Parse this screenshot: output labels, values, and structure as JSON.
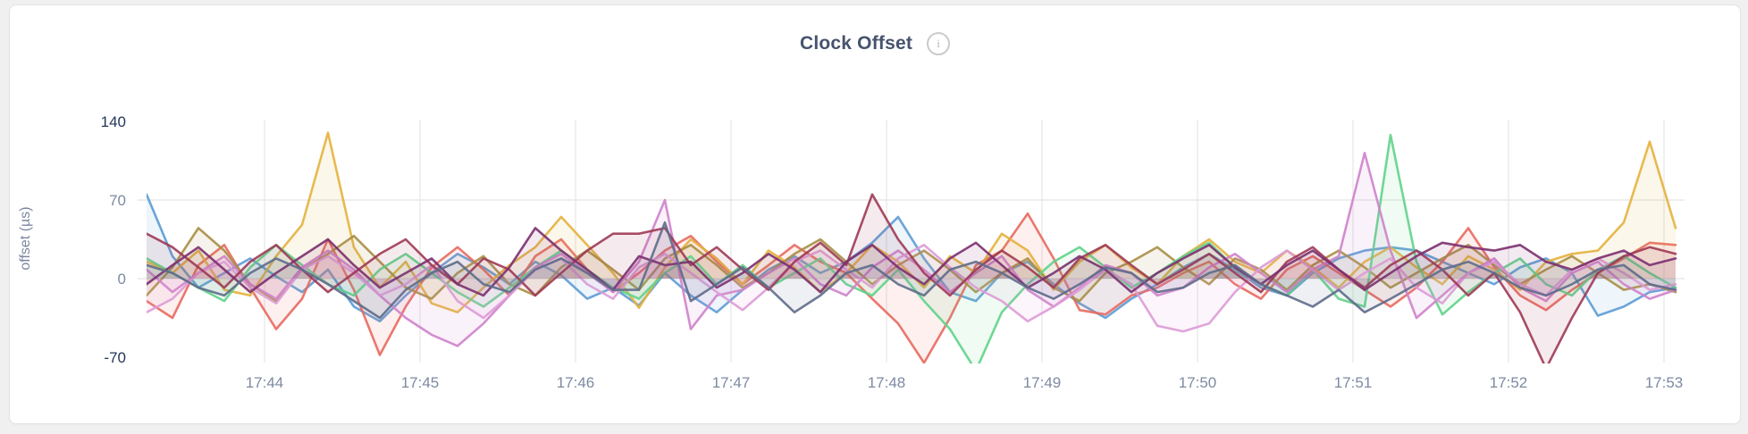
{
  "card": {
    "title": "Clock Offset",
    "info_icon": "i"
  },
  "chart_data": {
    "type": "line",
    "title": "Clock Offset",
    "xlabel": "",
    "ylabel": "offset (µs)",
    "ylim": [
      -70,
      140
    ],
    "y_ticks": [
      140,
      70,
      0,
      -70
    ],
    "y_ticks_emphasized": [
      140,
      -70
    ],
    "grid": true,
    "legend_position": "none",
    "x_tick_labels": [
      "17:44",
      "17:45",
      "17:46",
      "17:47",
      "17:48",
      "17:49",
      "17:50",
      "17:51",
      "17:52",
      "17:53"
    ],
    "x_start_label": "17:43:15",
    "sample_interval_seconds": 10,
    "series": [
      {
        "name": "blue",
        "color": "#5B9BD5",
        "values": [
          75,
          20,
          -8,
          5,
          18,
          2,
          -12,
          8,
          -25,
          -38,
          -15,
          5,
          22,
          10,
          -5,
          15,
          3,
          -18,
          -8,
          -24,
          5,
          -15,
          -30,
          -10,
          8,
          20,
          5,
          15,
          32,
          55,
          18,
          -12,
          -20,
          5,
          15,
          -5,
          -22,
          -35,
          -18,
          -5,
          10,
          22,
          8,
          -8,
          -15,
          5,
          18,
          25,
          28,
          25,
          15,
          5,
          -5,
          10,
          18,
          5,
          -33,
          -25,
          -12,
          -8
        ]
      },
      {
        "name": "salmon",
        "color": "#E8695F",
        "values": [
          -20,
          -35,
          12,
          30,
          -8,
          -45,
          -18,
          35,
          -10,
          -68,
          -25,
          10,
          28,
          8,
          -15,
          20,
          35,
          8,
          -12,
          5,
          25,
          38,
          15,
          -5,
          12,
          30,
          15,
          5,
          -18,
          -40,
          -75,
          -35,
          12,
          25,
          58,
          18,
          -28,
          -32,
          -15,
          -8,
          5,
          15,
          -5,
          -18,
          8,
          20,
          5,
          -10,
          -25,
          -8,
          15,
          45,
          10,
          -15,
          -28,
          -10,
          5,
          18,
          32,
          30
        ]
      },
      {
        "name": "gold",
        "color": "#E4B13D",
        "values": [
          15,
          5,
          25,
          -10,
          -15,
          20,
          48,
          130,
          28,
          -8,
          15,
          -22,
          -30,
          -8,
          12,
          28,
          55,
          30,
          5,
          -26,
          10,
          35,
          18,
          -5,
          25,
          10,
          -12,
          5,
          30,
          15,
          -8,
          20,
          5,
          40,
          25,
          -10,
          15,
          30,
          10,
          -5,
          20,
          35,
          15,
          5,
          25,
          10,
          -8,
          15,
          28,
          10,
          -5,
          20,
          8,
          -10,
          15,
          22,
          25,
          50,
          122,
          45
        ]
      },
      {
        "name": "olive",
        "color": "#A98E45",
        "values": [
          -15,
          10,
          45,
          25,
          -5,
          -20,
          8,
          22,
          38,
          15,
          -8,
          -18,
          5,
          20,
          -5,
          -15,
          10,
          25,
          8,
          -10,
          18,
          30,
          12,
          -8,
          5,
          22,
          35,
          15,
          -5,
          12,
          25,
          8,
          -12,
          5,
          18,
          -8,
          -20,
          5,
          15,
          28,
          10,
          -5,
          18,
          8,
          -10,
          12,
          25,
          10,
          -8,
          5,
          18,
          30,
          12,
          -5,
          8,
          20,
          5,
          -10,
          -5,
          -12
        ]
      },
      {
        "name": "green",
        "color": "#5FD38A",
        "values": [
          18,
          5,
          -8,
          -20,
          10,
          30,
          12,
          -5,
          -15,
          8,
          22,
          5,
          -12,
          -25,
          -8,
          10,
          25,
          8,
          -8,
          -18,
          5,
          20,
          -5,
          12,
          -8,
          5,
          18,
          -5,
          -15,
          8,
          -20,
          -45,
          -82,
          -30,
          -5,
          15,
          28,
          10,
          -8,
          5,
          20,
          32,
          10,
          -5,
          -15,
          8,
          -18,
          -25,
          128,
          15,
          -32,
          -12,
          5,
          18,
          -5,
          -15,
          8,
          20,
          5,
          -8
        ]
      },
      {
        "name": "orchid",
        "color": "#CF82CB",
        "values": [
          8,
          -12,
          5,
          20,
          -5,
          -18,
          10,
          25,
          8,
          -15,
          -35,
          -50,
          -60,
          -40,
          -15,
          10,
          22,
          5,
          -12,
          15,
          70,
          -45,
          -15,
          -10,
          5,
          18,
          -5,
          -15,
          10,
          25,
          8,
          -12,
          5,
          20,
          -10,
          -25,
          -8,
          12,
          5,
          -15,
          -8,
          10,
          22,
          5,
          -12,
          8,
          20,
          112,
          25,
          -35,
          -15,
          5,
          18,
          -8,
          -20,
          5,
          15,
          -5,
          -18,
          -10
        ]
      },
      {
        "name": "pink",
        "color": "#DD9BD6",
        "values": [
          -30,
          -18,
          5,
          15,
          -8,
          -22,
          8,
          20,
          5,
          -15,
          -5,
          12,
          -20,
          -35,
          -15,
          8,
          18,
          -5,
          -18,
          10,
          22,
          5,
          -12,
          -28,
          -8,
          15,
          25,
          8,
          -8,
          18,
          30,
          10,
          -8,
          -20,
          -38,
          -25,
          -10,
          8,
          -5,
          -42,
          -47,
          -40,
          -12,
          10,
          25,
          8,
          -10,
          5,
          18,
          -8,
          -22,
          5,
          15,
          -5,
          -15,
          8,
          18,
          5,
          -10,
          -5
        ]
      },
      {
        "name": "maroon",
        "color": "#9E3A55",
        "values": [
          40,
          28,
          10,
          -8,
          15,
          30,
          8,
          -12,
          5,
          22,
          35,
          12,
          -5,
          18,
          8,
          -15,
          5,
          25,
          40,
          40,
          45,
          12,
          28,
          8,
          -10,
          15,
          32,
          12,
          75,
          35,
          5,
          -15,
          8,
          25,
          10,
          -8,
          18,
          30,
          12,
          -5,
          8,
          22,
          5,
          -12,
          15,
          28,
          8,
          -8,
          12,
          25,
          8,
          -15,
          5,
          -30,
          -80,
          -35,
          5,
          20,
          28,
          22
        ]
      },
      {
        "name": "purple",
        "color": "#7B2F6F",
        "values": [
          -5,
          12,
          28,
          8,
          -12,
          5,
          20,
          35,
          12,
          -8,
          5,
          18,
          -5,
          -15,
          10,
          45,
          25,
          8,
          -10,
          20,
          12,
          15,
          -8,
          5,
          22,
          8,
          -12,
          15,
          30,
          10,
          -5,
          18,
          32,
          12,
          -8,
          5,
          20,
          8,
          -12,
          5,
          18,
          30,
          10,
          -5,
          12,
          25,
          8,
          -10,
          5,
          20,
          32,
          28,
          25,
          30,
          15,
          8,
          18,
          25,
          12,
          18
        ]
      },
      {
        "name": "slate",
        "color": "#5E6C89",
        "values": [
          12,
          5,
          -8,
          -15,
          5,
          18,
          8,
          -5,
          -20,
          -35,
          -10,
          5,
          15,
          -5,
          -12,
          8,
          18,
          5,
          -10,
          -10,
          50,
          -20,
          -5,
          10,
          -8,
          -30,
          -15,
          5,
          12,
          -5,
          -15,
          8,
          15,
          5,
          -8,
          -18,
          -5,
          10,
          5,
          -12,
          -8,
          5,
          12,
          -5,
          -15,
          -25,
          -10,
          -30,
          -18,
          -5,
          8,
          15,
          5,
          -8,
          -15,
          -5,
          8,
          12,
          -5,
          -10
        ]
      }
    ]
  }
}
